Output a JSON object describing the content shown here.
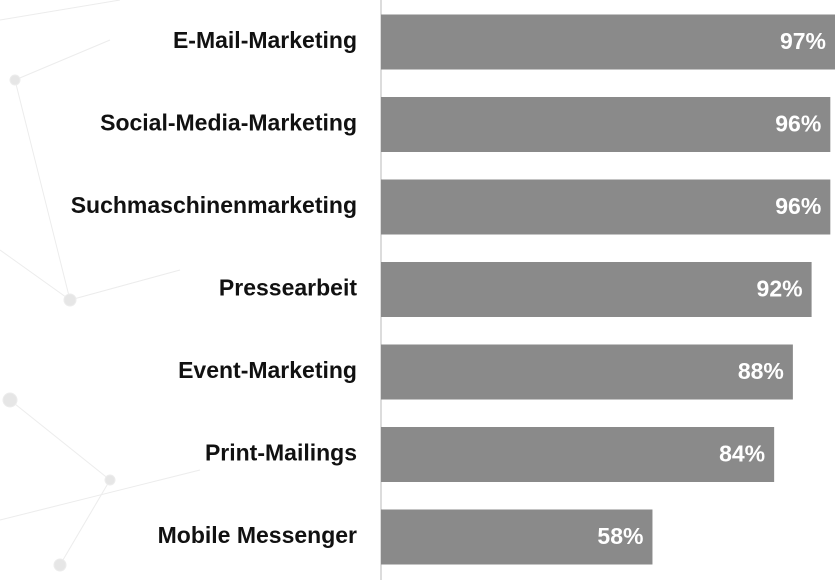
{
  "chart_data": {
    "type": "bar",
    "orientation": "horizontal",
    "categories": [
      "E-Mail-Marketing",
      "Social-Media-Marketing",
      "Suchmaschinenmarketing",
      "Pressearbeit",
      "Event-Marketing",
      "Print-Mailings",
      "Mobile Messenger"
    ],
    "values": [
      97,
      96,
      96,
      92,
      88,
      84,
      58
    ],
    "value_labels": [
      "97%",
      "96%",
      "96%",
      "92%",
      "88%",
      "84%",
      "58%"
    ],
    "color": "#8a8a8a"
  }
}
